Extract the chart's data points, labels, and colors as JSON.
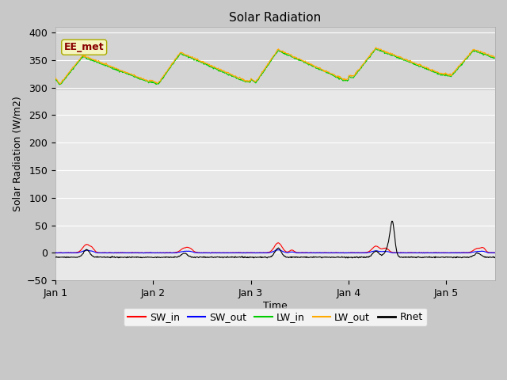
{
  "title": "Solar Radiation",
  "xlabel": "Time",
  "ylabel": "Solar Radiation (W/m2)",
  "ylim": [
    -50,
    410
  ],
  "xlim": [
    0,
    4.5
  ],
  "yticks": [
    -50,
    0,
    50,
    100,
    150,
    200,
    250,
    300,
    350,
    400
  ],
  "xtick_labels": [
    "Jan 1",
    "Jan 2",
    "Jan 3",
    "Jan 4",
    "Jan 5"
  ],
  "xtick_positions": [
    0,
    1,
    2,
    3,
    4
  ],
  "legend_labels": [
    "SW_in",
    "SW_out",
    "LW_in",
    "LW_out",
    "Rnet"
  ],
  "legend_colors": [
    "#ff0000",
    "#0000ff",
    "#00cc00",
    "#ffaa00",
    "#000000"
  ],
  "station_label": "EE_met",
  "fig_bg": "#c8c8c8",
  "ax_bg": "#e8e8e8",
  "band_bg": "#d4d4d4",
  "band_ymin": 295,
  "band_ymax": 410,
  "grid_color": "#ffffff"
}
